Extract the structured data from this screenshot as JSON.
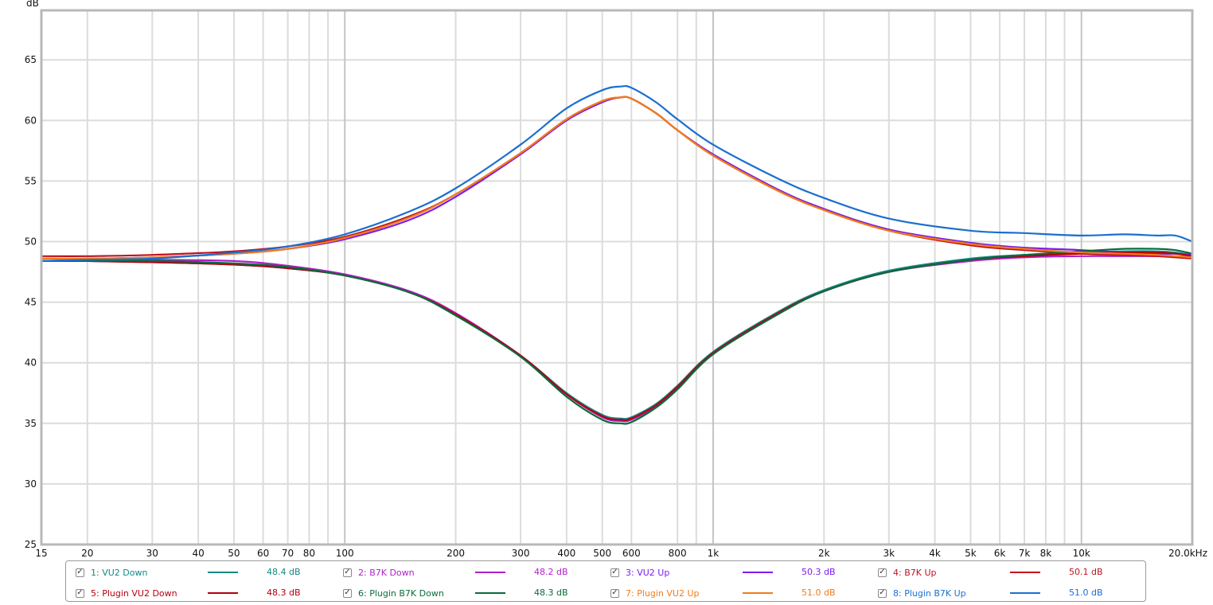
{
  "chart_data": {
    "type": "line",
    "title": "",
    "xlabel": "Hz",
    "ylabel": "dB",
    "x_scale": "log",
    "xlim": [
      15,
      20000
    ],
    "ylim": [
      25,
      69
    ],
    "grid": true,
    "legend_position": "bottom",
    "y_unit_label": "dB",
    "y_ticks": [
      {
        "value": 25,
        "label": "25"
      },
      {
        "value": 30,
        "label": "30"
      },
      {
        "value": 35,
        "label": "35"
      },
      {
        "value": 40,
        "label": "40"
      },
      {
        "value": 45,
        "label": "45"
      },
      {
        "value": 50,
        "label": "50"
      },
      {
        "value": 55,
        "label": "55"
      },
      {
        "value": 60,
        "label": "60"
      },
      {
        "value": 65,
        "label": "65"
      }
    ],
    "x_ticks": [
      {
        "value": 15,
        "label": "15"
      },
      {
        "value": 20,
        "label": "20"
      },
      {
        "value": 30,
        "label": "30"
      },
      {
        "value": 40,
        "label": "40"
      },
      {
        "value": 50,
        "label": "50"
      },
      {
        "value": 60,
        "label": "60"
      },
      {
        "value": 70,
        "label": "70"
      },
      {
        "value": 80,
        "label": "80"
      },
      {
        "value": 100,
        "label": "100"
      },
      {
        "value": 200,
        "label": "200"
      },
      {
        "value": 300,
        "label": "300"
      },
      {
        "value": 400,
        "label": "400"
      },
      {
        "value": 500,
        "label": "500"
      },
      {
        "value": 600,
        "label": "600"
      },
      {
        "value": 800,
        "label": "800"
      },
      {
        "value": 1000,
        "label": "1k"
      },
      {
        "value": 2000,
        "label": "2k"
      },
      {
        "value": 3000,
        "label": "3k"
      },
      {
        "value": 4000,
        "label": "4k"
      },
      {
        "value": 5000,
        "label": "5k"
      },
      {
        "value": 6000,
        "label": "6k"
      },
      {
        "value": 7000,
        "label": "7k"
      },
      {
        "value": 8000,
        "label": "8k"
      },
      {
        "value": 10000,
        "label": "10k"
      },
      {
        "value": 20000,
        "label": "20.0kHz"
      }
    ],
    "x_minor_grid": [
      90,
      900,
      9000
    ],
    "x_major_grid": [
      100,
      1000,
      10000
    ],
    "x": [
      15,
      20,
      30,
      50,
      70,
      100,
      150,
      200,
      300,
      400,
      500,
      560,
      600,
      700,
      800,
      1000,
      1500,
      2000,
      3000,
      5000,
      7000,
      10000,
      13000,
      16000,
      18000,
      20000
    ],
    "series": [
      {
        "name": "1: VU2 Down",
        "color": "#0f8a84",
        "legend_value": "48.4 dB",
        "values": [
          48.4,
          48.4,
          48.3,
          48.1,
          47.8,
          47.2,
          45.8,
          44.0,
          40.6,
          37.5,
          35.7,
          35.4,
          35.5,
          36.6,
          38.1,
          40.9,
          44.2,
          46.0,
          47.6,
          48.6,
          48.9,
          49.1,
          49.2,
          49.2,
          49.1,
          48.9
        ]
      },
      {
        "name": "2: B7K Down",
        "color": "#b01fc9",
        "legend_value": "48.2 dB",
        "values": [
          48.4,
          48.5,
          48.5,
          48.4,
          48.0,
          47.3,
          45.9,
          44.1,
          40.6,
          37.4,
          35.5,
          35.2,
          35.3,
          36.4,
          37.9,
          40.8,
          44.1,
          45.9,
          47.5,
          48.4,
          48.7,
          48.8,
          48.8,
          48.8,
          48.8,
          48.7
        ]
      },
      {
        "name": "3: VU2 Up",
        "color": "#7a1cf0",
        "legend_value": "50.3 dB",
        "values": [
          48.6,
          48.6,
          48.7,
          49.0,
          49.4,
          50.2,
          51.8,
          53.7,
          57.2,
          60.0,
          61.5,
          61.9,
          61.8,
          60.6,
          59.2,
          57.2,
          54.3,
          52.7,
          51.0,
          49.9,
          49.5,
          49.3,
          49.1,
          49.0,
          49.0,
          48.9
        ]
      },
      {
        "name": "4: B7K Up",
        "color": "#c0121e",
        "legend_value": "50.1 dB",
        "values": [
          48.8,
          48.8,
          48.9,
          49.2,
          49.6,
          50.4,
          52.1,
          53.9,
          57.3,
          60.1,
          61.6,
          61.9,
          61.8,
          60.6,
          59.2,
          57.1,
          54.2,
          52.6,
          50.9,
          49.7,
          49.3,
          49.0,
          48.9,
          48.8,
          48.7,
          48.6
        ]
      },
      {
        "name": "5: Plugin VU2 Down",
        "color": "#b3000f",
        "legend_value": "48.3 dB",
        "values": [
          48.4,
          48.4,
          48.3,
          48.1,
          47.8,
          47.2,
          45.8,
          44.0,
          40.6,
          37.4,
          35.6,
          35.3,
          35.4,
          36.5,
          38.0,
          40.8,
          44.1,
          45.9,
          47.5,
          48.5,
          48.8,
          49.0,
          49.1,
          49.1,
          49.0,
          48.8
        ]
      },
      {
        "name": "6: Plugin B7K Down",
        "color": "#0a6b3a",
        "legend_value": "48.3 dB",
        "values": [
          48.4,
          48.4,
          48.4,
          48.2,
          47.9,
          47.2,
          45.8,
          43.9,
          40.5,
          37.2,
          35.3,
          35.0,
          35.1,
          36.3,
          37.8,
          40.7,
          44.0,
          45.9,
          47.5,
          48.5,
          48.9,
          49.2,
          49.4,
          49.4,
          49.3,
          49.0
        ]
      },
      {
        "name": "7: Plugin VU2 Up",
        "color": "#f07c1a",
        "legend_value": "51.0 dB",
        "values": [
          48.6,
          48.6,
          48.7,
          49.0,
          49.4,
          50.3,
          52.0,
          53.9,
          57.3,
          60.1,
          61.6,
          61.9,
          61.8,
          60.6,
          59.2,
          57.1,
          54.2,
          52.6,
          50.9,
          49.8,
          49.4,
          49.1,
          49.0,
          48.9,
          48.8,
          48.7
        ]
      },
      {
        "name": "8: Plugin B7K Up",
        "color": "#1a6fd0",
        "legend_value": "51.0 dB",
        "values": [
          48.4,
          48.5,
          48.6,
          49.1,
          49.6,
          50.6,
          52.5,
          54.4,
          58.0,
          61.0,
          62.5,
          62.8,
          62.7,
          61.5,
          60.1,
          58.0,
          55.2,
          53.6,
          51.9,
          50.9,
          50.7,
          50.5,
          50.6,
          50.5,
          50.5,
          50.0
        ]
      }
    ]
  },
  "legend": {
    "items": [
      {
        "label": "1: VU2 Down",
        "value": "48.4 dB",
        "color": "#0f8a84",
        "checked": "✓"
      },
      {
        "label": "2: B7K Down",
        "value": "48.2 dB",
        "color": "#b01fc9",
        "checked": "✓"
      },
      {
        "label": "3: VU2 Up",
        "value": "50.3 dB",
        "color": "#7a1cf0",
        "checked": "✓"
      },
      {
        "label": "4: B7K Up",
        "value": "50.1 dB",
        "color": "#c0121e",
        "checked": "✓"
      },
      {
        "label": "5: Plugin VU2 Down",
        "value": "48.3 dB",
        "color": "#b3000f",
        "checked": "✓"
      },
      {
        "label": "6: Plugin B7K Down",
        "value": "48.3 dB",
        "color": "#0a6b3a",
        "checked": "✓"
      },
      {
        "label": "7: Plugin VU2 Up",
        "value": "51.0 dB",
        "color": "#f07c1a",
        "checked": "✓"
      },
      {
        "label": "8: Plugin B7K Up",
        "value": "51.0 dB",
        "color": "#1a6fd0",
        "checked": "✓"
      }
    ]
  }
}
